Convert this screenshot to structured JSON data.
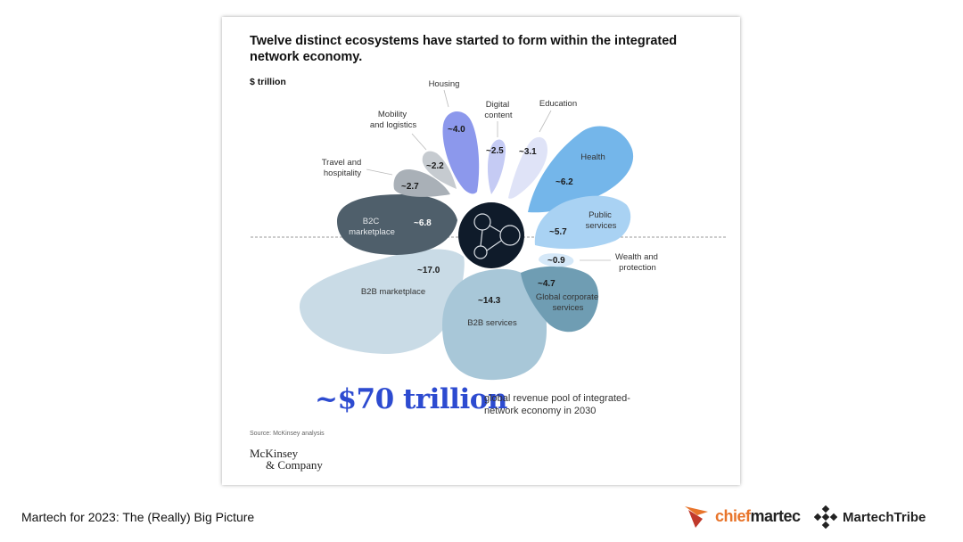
{
  "chart_data": {
    "type": "petal",
    "title": "Twelve distinct ecosystems have started to form within the integrated network economy.",
    "unit_label": "$ trillion",
    "petals": [
      {
        "name": "B2B marketplace",
        "value": 17.0,
        "value_label": "~17.0",
        "color": "#c9dbe6"
      },
      {
        "name": "B2B services",
        "value": 14.3,
        "value_label": "~14.3",
        "color": "#a8c7d8"
      },
      {
        "name": "B2C marketplace",
        "value": 6.8,
        "value_label": "~6.8",
        "color": "#4f5f6b"
      },
      {
        "name": "Health",
        "value": 6.2,
        "value_label": "~6.2",
        "color": "#74b6ea"
      },
      {
        "name": "Public services",
        "value": 5.7,
        "value_label": "~5.7",
        "color": "#a9d2f3"
      },
      {
        "name": "Global corporate services",
        "value": 4.7,
        "value_label": "~4.7",
        "color": "#6f9db3"
      },
      {
        "name": "Housing",
        "value": 4.0,
        "value_label": "~4.0",
        "color": "#8c98ec"
      },
      {
        "name": "Education",
        "value": 3.1,
        "value_label": "~3.1",
        "color": "#dfe3f7"
      },
      {
        "name": "Travel and hospitality",
        "value": 2.7,
        "value_label": "~2.7",
        "color": "#a9b0b7"
      },
      {
        "name": "Digital content",
        "value": 2.5,
        "value_label": "~2.5",
        "color": "#c5cbf4"
      },
      {
        "name": "Mobility and logistics",
        "value": 2.2,
        "value_label": "~2.2",
        "color": "#c6cbd0"
      },
      {
        "name": "Wealth and protection",
        "value": 0.9,
        "value_label": "~0.9",
        "color": "#d5e8f8"
      }
    ],
    "labels": {
      "housing": "Housing",
      "digital_1": "Digital",
      "digital_2": "content",
      "education": "Education",
      "mobility_1": "Mobility",
      "mobility_2": "and logistics",
      "travel_1": "Travel and",
      "travel_2": "hospitality",
      "health": "Health",
      "public_1": "Public",
      "public_2": "services",
      "b2c_1": "B2C",
      "b2c_2": "marketplace",
      "wealth_1": "Wealth and",
      "wealth_2": "protection",
      "gcs_1": "Global corporate",
      "gcs_2": "services",
      "b2b_marketplace": "B2B marketplace",
      "b2b_services": "B2B services"
    },
    "total_label": "~$70 trillion",
    "total_description": "global revenue pool of integrated-network economy in 2030"
  },
  "footer": {
    "source": "Source: McKinsey analysis",
    "brand_line1": "McKinsey",
    "brand_line2": "& Company",
    "caption": "Martech for 2023: The (Really) Big Picture",
    "logo_chiefmartec_a": "chief",
    "logo_chiefmartec_b": "martec",
    "logo_martechtribe": "MartechTribe"
  },
  "colors": {
    "accent_total": "#2d4bd0",
    "center_hub": "#0f1b2a",
    "chiefmartec_orange": "#e8742a"
  }
}
